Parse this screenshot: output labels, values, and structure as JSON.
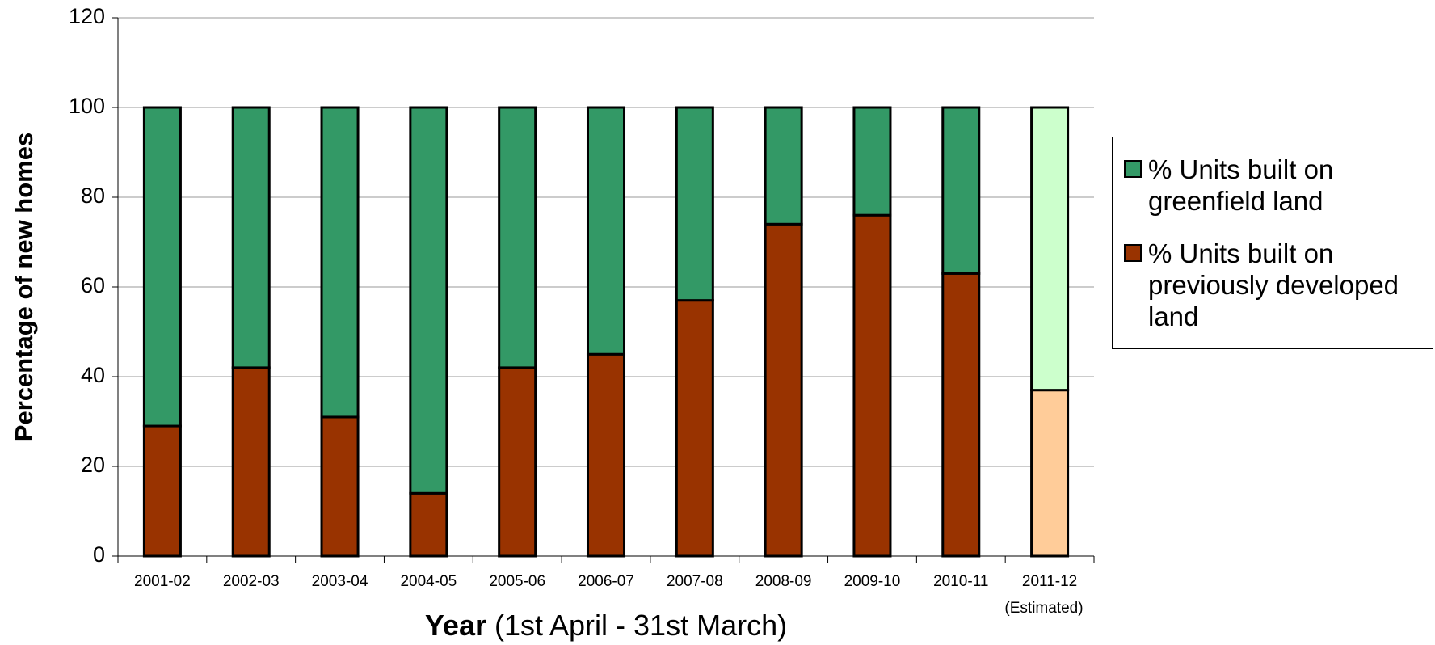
{
  "chart_data": {
    "type": "stacked-bar",
    "ylabel": "Percentage of new homes",
    "xlabel": [
      "Year",
      "(1st April - 31st March)"
    ],
    "annotation": "(Estimated)",
    "categories": [
      "2001-02",
      "2002-03",
      "2003-04",
      "2004-05",
      "2005-06",
      "2006-07",
      "2007-08",
      "2008-09",
      "2009-10",
      "2010-11",
      "2011-12"
    ],
    "series": [
      {
        "name": "% Units built on previously developed land",
        "color": "#993300",
        "values": [
          29,
          42,
          31,
          14,
          42,
          45,
          57,
          74,
          76,
          63,
          37
        ],
        "point_colors": [
          "#993300",
          "#993300",
          "#993300",
          "#993300",
          "#993300",
          "#993300",
          "#993300",
          "#993300",
          "#993300",
          "#993300",
          "#ffcc99"
        ]
      },
      {
        "name": "% Units built on greenfield land",
        "color": "#339966",
        "values": [
          71,
          58,
          69,
          86,
          58,
          55,
          43,
          26,
          24,
          37,
          63
        ],
        "point_colors": [
          "#339966",
          "#339966",
          "#339966",
          "#339966",
          "#339966",
          "#339966",
          "#339966",
          "#339966",
          "#339966",
          "#339966",
          "#ccffcc"
        ]
      }
    ],
    "ylim": [
      0,
      120
    ],
    "yticks": [
      0,
      20,
      40,
      60,
      80,
      100,
      120
    ],
    "grid": true,
    "legend": "right"
  }
}
